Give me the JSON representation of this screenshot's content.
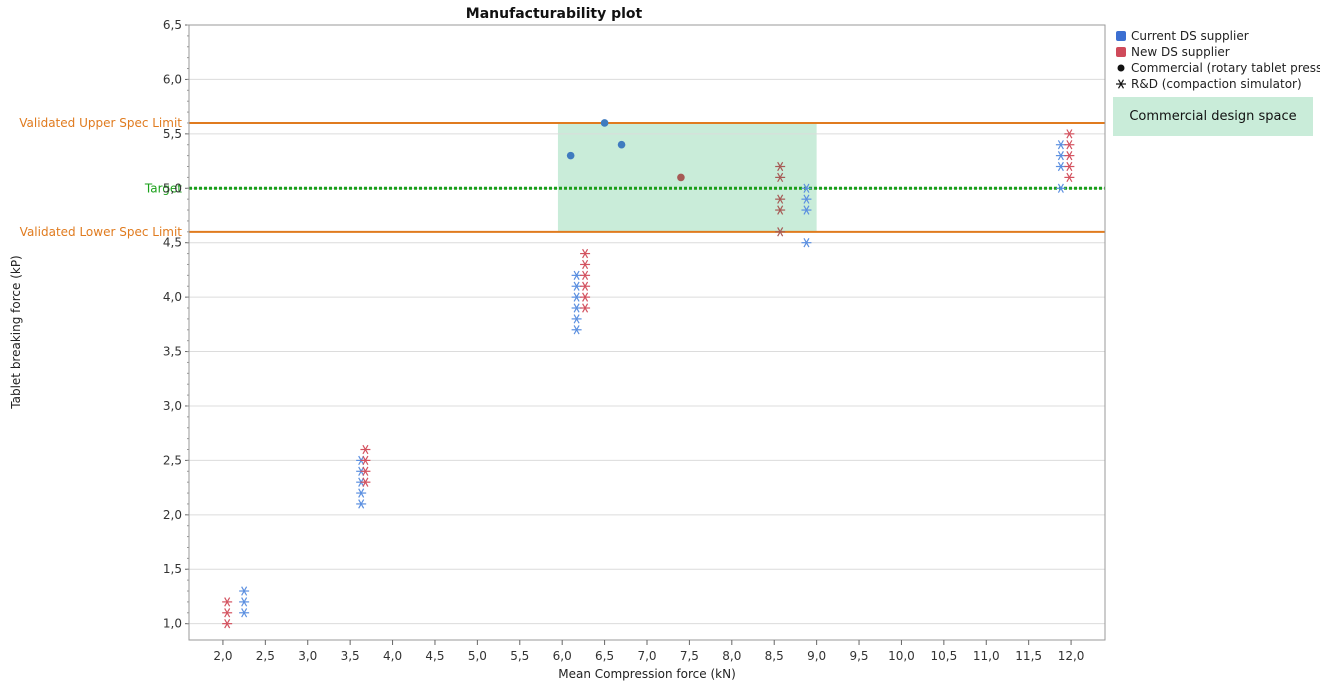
{
  "chart_data": {
    "type": "scatter",
    "title": "Manufacturability plot",
    "xlabel": "Mean Compression force (kN)",
    "ylabel": "Tablet breaking force (kP)",
    "xlim": [
      1.6,
      12.4
    ],
    "ylim": [
      0.85,
      6.5
    ],
    "x_ticks": [
      "2,0",
      "2,5",
      "3,0",
      "3,5",
      "4,0",
      "4,5",
      "5,0",
      "5,5",
      "6,0",
      "6,5",
      "7,0",
      "7,5",
      "8,0",
      "8,5",
      "9,0",
      "9,5",
      "10,0",
      "10,5",
      "11,0",
      "11,5",
      "12,0"
    ],
    "y_ticks": [
      "1,0",
      "1,5",
      "2,0",
      "2,5",
      "3,0",
      "3,5",
      "4,0",
      "4,5",
      "5,0",
      "5,5",
      "6,0",
      "6,5"
    ],
    "grid": "horizontal",
    "legend_position": "right",
    "reference_lines": [
      {
        "label": "Validated Upper Spec Limit",
        "y": 5.6,
        "style": "solid",
        "color": "#e07b1f"
      },
      {
        "label": "Target",
        "y": 5.0,
        "style": "dotted",
        "color": "#1aa01a"
      },
      {
        "label": "Validated Lower Spec Limit",
        "y": 4.6,
        "style": "solid",
        "color": "#e07b1f"
      }
    ],
    "region": {
      "label": "Commercial design space",
      "x": [
        5.95,
        9.0
      ],
      "y": [
        4.6,
        5.6
      ],
      "color": "#c9ecd9"
    },
    "legend": [
      {
        "label": "Current DS supplier",
        "marker": "square",
        "color": "#3c6fd1"
      },
      {
        "label": "New DS supplier",
        "marker": "square",
        "color": "#cf4a5a"
      },
      {
        "label": "Commercial (rotary tablet press)",
        "marker": "dot",
        "color": "#111111"
      },
      {
        "label": "R&D (compaction simulator)",
        "marker": "asterisk",
        "color": "#111111"
      }
    ],
    "series": [
      {
        "name": "Current DS supplier",
        "marker": "dot",
        "color": "#3f7bbf",
        "points": [
          [
            6.1,
            5.3
          ],
          [
            6.5,
            5.6
          ],
          [
            6.7,
            5.4
          ]
        ]
      },
      {
        "name": "New DS supplier",
        "marker": "dot",
        "color": "#a65a55",
        "points": [
          [
            7.4,
            5.1
          ]
        ]
      },
      {
        "name": "Current DS supplier",
        "marker": "asterisk",
        "color": "#5b8fe0",
        "points": [
          [
            2.25,
            1.1
          ],
          [
            2.25,
            1.2
          ],
          [
            2.25,
            1.3
          ],
          [
            3.63,
            2.1
          ],
          [
            3.63,
            2.2
          ],
          [
            3.63,
            2.3
          ],
          [
            3.63,
            2.4
          ],
          [
            3.63,
            2.5
          ],
          [
            6.17,
            3.7
          ],
          [
            6.17,
            3.8
          ],
          [
            6.17,
            3.9
          ],
          [
            6.17,
            4.0
          ],
          [
            6.17,
            4.1
          ],
          [
            6.17,
            4.2
          ],
          [
            8.88,
            4.5
          ],
          [
            8.88,
            4.8
          ],
          [
            8.88,
            4.9
          ],
          [
            8.88,
            5.0
          ],
          [
            11.88,
            5.0
          ],
          [
            11.88,
            5.2
          ],
          [
            11.88,
            5.3
          ],
          [
            11.88,
            5.4
          ]
        ]
      },
      {
        "name": "New DS supplier",
        "marker": "asterisk",
        "color": "#d3525f",
        "points": [
          [
            2.05,
            1.0
          ],
          [
            2.05,
            1.1
          ],
          [
            2.05,
            1.2
          ],
          [
            3.68,
            2.3
          ],
          [
            3.68,
            2.4
          ],
          [
            3.68,
            2.5
          ],
          [
            3.68,
            2.6
          ],
          [
            6.27,
            3.9
          ],
          [
            6.27,
            4.0
          ],
          [
            6.27,
            4.1
          ],
          [
            6.27,
            4.2
          ],
          [
            6.27,
            4.3
          ],
          [
            6.27,
            4.4
          ],
          [
            11.98,
            5.1
          ],
          [
            11.98,
            5.2
          ],
          [
            11.98,
            5.3
          ],
          [
            11.98,
            5.4
          ],
          [
            11.98,
            5.5
          ]
        ]
      },
      {
        "name": "New DS supplier",
        "marker": "asterisk",
        "color": "#a65a55",
        "points": [
          [
            8.57,
            4.6
          ],
          [
            8.57,
            4.8
          ],
          [
            8.57,
            4.9
          ],
          [
            8.57,
            5.1
          ],
          [
            8.57,
            5.2
          ]
        ]
      }
    ]
  }
}
